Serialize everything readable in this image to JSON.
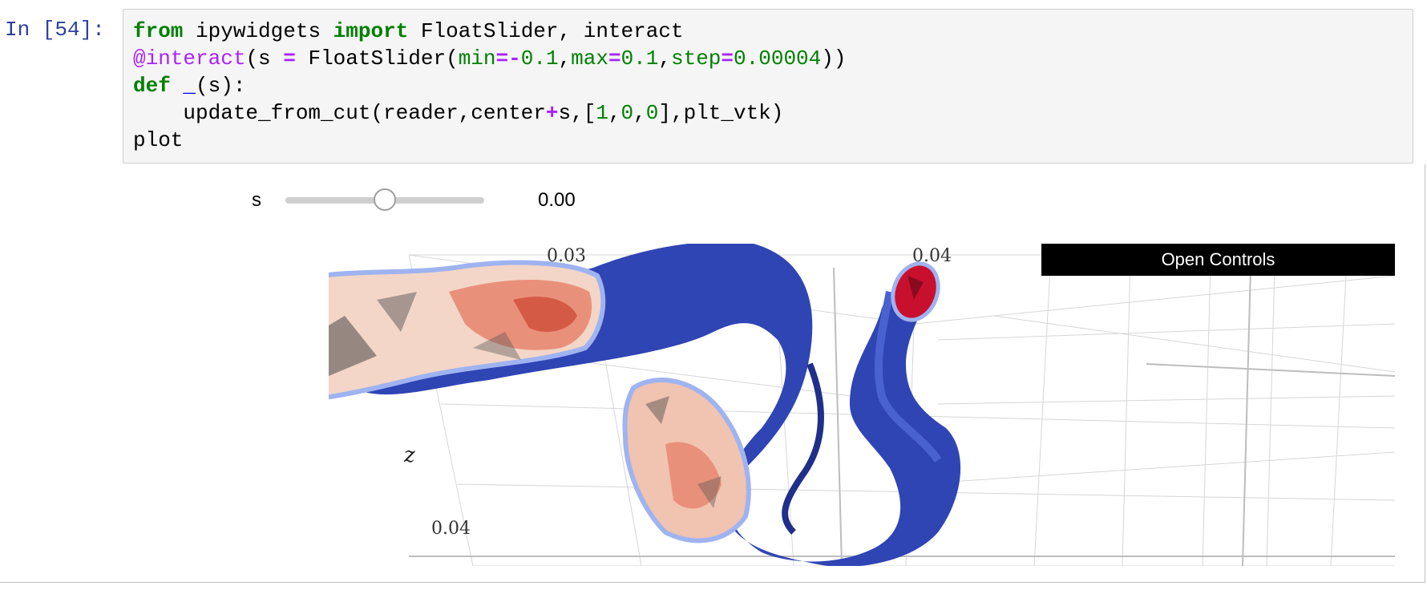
{
  "cell": {
    "prompt": "In [54]:",
    "code": {
      "line1": {
        "k1": "from",
        "t1": " ipywidgets ",
        "k2": "import",
        "t2": " FloatSlider, interact"
      },
      "line2": {
        "deco": "@interact",
        "t1": "(s ",
        "op1": "=",
        "t2": " FloatSlider(",
        "min_kw": "min",
        "op2": "=",
        "op3": "-",
        "min_val": "0.1",
        "t3": ",",
        "max_kw": "max",
        "op4": "=",
        "max_val": "0.1",
        "t4": ",",
        "step_kw": "step",
        "op5": "=",
        "step_val": "0.00004",
        "t5": "))"
      },
      "line3": {
        "k1": "def",
        "t1": " ",
        "fn": "_",
        "t2": "(s):"
      },
      "line4": {
        "t1": "    update_from_cut(reader,center",
        "op": "+",
        "t2": "s,[",
        "n1": "1",
        "c1": ",",
        "n2": "0",
        "c2": ",",
        "n3": "0",
        "t3": "],plt_vtk)"
      },
      "line5": {
        "t1": "plot"
      }
    }
  },
  "widget": {
    "slider_label": "s",
    "slider_value": "0.00",
    "slider_fraction": 0.5
  },
  "plot": {
    "open_controls": "Open Controls",
    "tick_labels": {
      "top_left": "0.03",
      "top_right": "0.04",
      "left_bottom": "0.04"
    },
    "axis_labels": {
      "z": "z"
    },
    "colors": {
      "vessel": "#2f45b4",
      "vessel_dark": "#1f2f8a",
      "cut_light": "#f3d6c8",
      "cut_mid": "#e9907a",
      "cut_dark": "#c9382a",
      "cap_red": "#c8102e",
      "grid": "#cfcfcf"
    }
  }
}
